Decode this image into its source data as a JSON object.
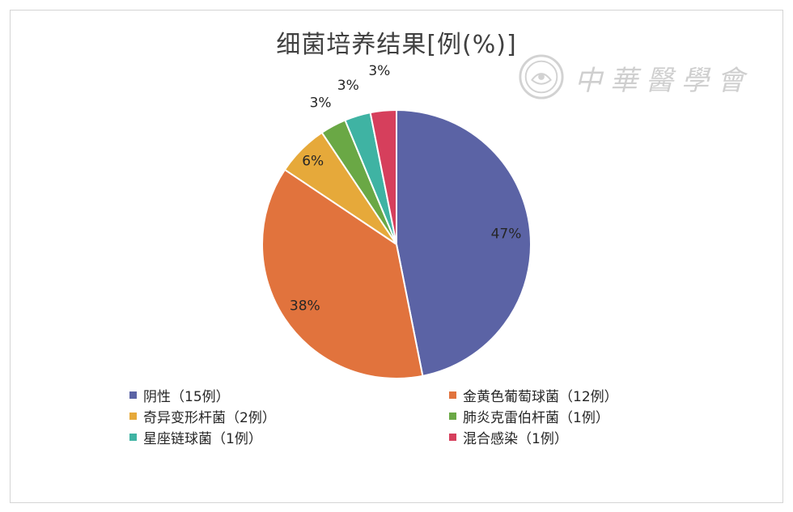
{
  "chart_data": {
    "type": "pie",
    "title": "细菌培养结果[例(%)]",
    "slices": [
      {
        "name": "阴性（15例）",
        "value": 15,
        "label": "47%",
        "color": "#5b63a5"
      },
      {
        "name": "金黄色葡萄球菌（12例）",
        "value": 12,
        "label": "38%",
        "color": "#e1733d"
      },
      {
        "name": "奇异变形杆菌（2例）",
        "value": 2,
        "label": "6%",
        "color": "#e6a93a"
      },
      {
        "name": "肺炎克雷伯杆菌（1例）",
        "value": 1,
        "label": "3%",
        "color": "#6aa845"
      },
      {
        "name": "星座链球菌（1例）",
        "value": 1,
        "label": "3%",
        "color": "#3fb3a3"
      },
      {
        "name": "混合感染（1例）",
        "value": 1,
        "label": "3%",
        "color": "#d63f5c"
      }
    ],
    "legend_position": "bottom"
  },
  "watermark": {
    "text": "中華醫學會"
  }
}
